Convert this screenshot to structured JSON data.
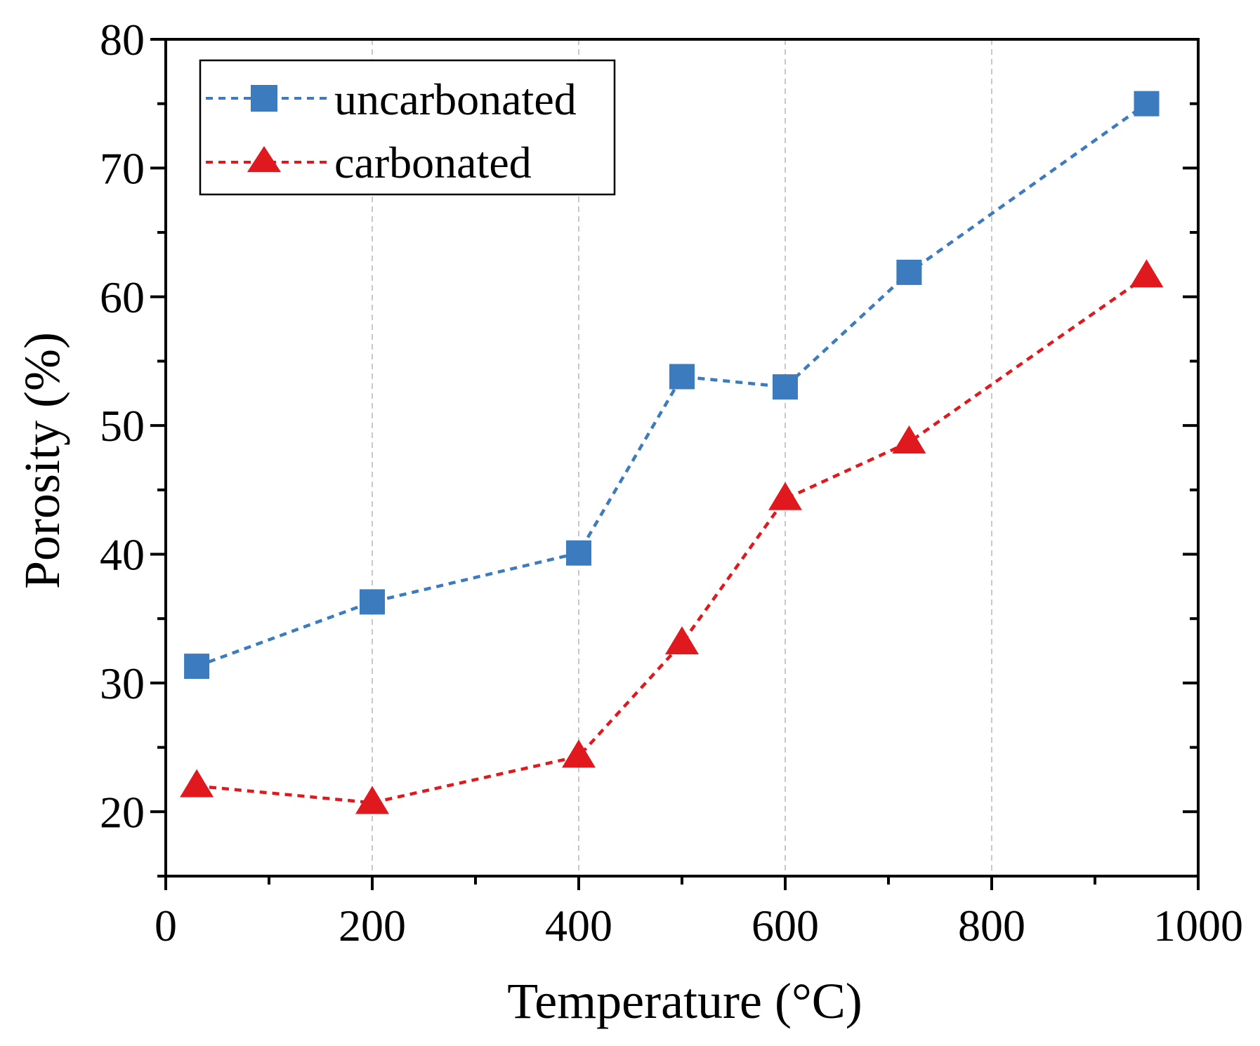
{
  "chart_data": {
    "type": "line",
    "title": "",
    "xlabel": "Temperature (°C)",
    "ylabel": "Porosity (%)",
    "xlim": [
      0,
      1000
    ],
    "ylim": [
      15,
      80
    ],
    "xticks": [
      0,
      200,
      400,
      600,
      800,
      1000
    ],
    "xtick_labels": [
      "0",
      "200",
      "400",
      "600",
      "800",
      "1000"
    ],
    "yticks": [
      20,
      30,
      40,
      50,
      60,
      70,
      80
    ],
    "ytick_labels": [
      "20",
      "30",
      "40",
      "50",
      "60",
      "70",
      "80"
    ],
    "x_minor_step": 100,
    "y_minor_step": 5,
    "grid": "vertical dashed at major x ticks",
    "legend_position": "top-left",
    "series": [
      {
        "name": "uncarbonated",
        "color": "#3B7BBE",
        "marker": "square",
        "line_style": "dashed",
        "x": [
          30,
          200,
          400,
          500,
          600,
          720,
          950
        ],
        "values": [
          31.3,
          36.3,
          40.1,
          53.8,
          53.0,
          61.9,
          75.0
        ]
      },
      {
        "name": "carbonated",
        "color": "#E0191E",
        "marker": "triangle",
        "line_style": "dashed",
        "x": [
          30,
          200,
          400,
          500,
          600,
          720,
          950
        ],
        "values": [
          22.0,
          20.7,
          24.3,
          33.1,
          44.3,
          48.7,
          61.6
        ]
      }
    ]
  }
}
